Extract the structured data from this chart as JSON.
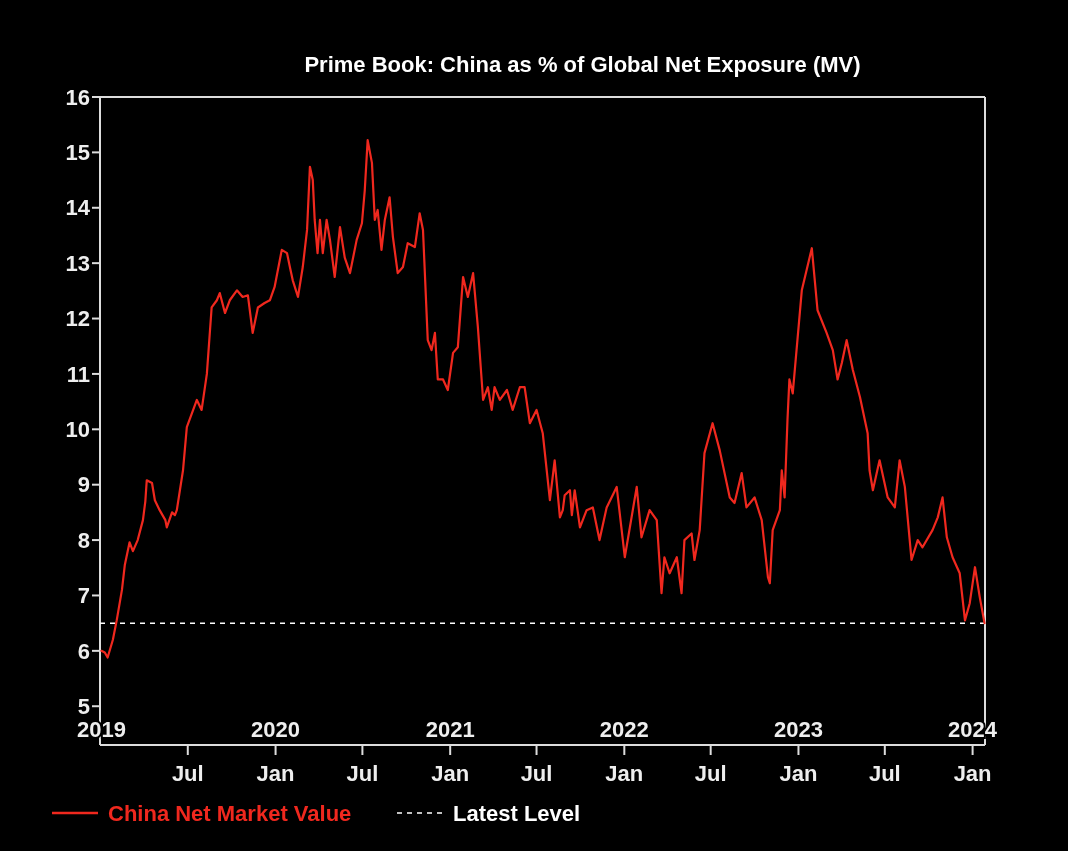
{
  "chart_data": {
    "type": "line",
    "title": "Prime Book: China as % of Global Net Exposure (MV)",
    "x": [
      "2019-01-01",
      "2019-01-08",
      "2019-01-14",
      "2019-01-25",
      "2019-02-02",
      "2019-02-13",
      "2019-02-19",
      "2019-03-01",
      "2019-03-08",
      "2019-03-18",
      "2019-03-29",
      "2019-04-03",
      "2019-04-06",
      "2019-04-17",
      "2019-04-23",
      "2019-05-03",
      "2019-05-15",
      "2019-05-18",
      "2019-05-29",
      "2019-06-04",
      "2019-06-08",
      "2019-06-21",
      "2019-06-29",
      "2019-07-20",
      "2019-07-30",
      "2019-08-10",
      "2019-08-20",
      "2019-08-31",
      "2019-09-06",
      "2019-09-17",
      "2019-09-27",
      "2019-10-12",
      "2019-10-24",
      "2019-11-04",
      "2019-11-14",
      "2019-11-25",
      "2019-12-09",
      "2019-12-20",
      "2019-12-30",
      "2020-01-14",
      "2020-01-25",
      "2020-01-31",
      "2020-02-06",
      "2020-02-17",
      "2020-02-27",
      "2020-03-07",
      "2020-03-13",
      "2020-03-19",
      "2020-03-23",
      "2020-03-29",
      "2020-04-03",
      "2020-04-09",
      "2020-04-17",
      "2020-04-24",
      "2020-05-04",
      "2020-05-15",
      "2020-05-25",
      "2020-06-05",
      "2020-06-19",
      "2020-06-30",
      "2020-07-06",
      "2020-07-12",
      "2020-07-21",
      "2020-07-27",
      "2020-08-02",
      "2020-08-10",
      "2020-08-17",
      "2020-08-27",
      "2020-09-03",
      "2020-09-13",
      "2020-09-24",
      "2020-10-04",
      "2020-10-19",
      "2020-10-29",
      "2020-11-05",
      "2020-11-15",
      "2020-11-23",
      "2020-11-30",
      "2020-12-06",
      "2020-12-17",
      "2020-12-27",
      "2021-01-07",
      "2021-01-17",
      "2021-01-28",
      "2021-02-07",
      "2021-02-18",
      "2021-02-28",
      "2021-03-11",
      "2021-03-21",
      "2021-03-29",
      "2021-04-04",
      "2021-04-15",
      "2021-04-30",
      "2021-05-12",
      "2021-05-27",
      "2021-06-06",
      "2021-06-17",
      "2021-07-01",
      "2021-07-14",
      "2021-07-29",
      "2021-08-08",
      "2021-08-19",
      "2021-08-25",
      "2021-08-29",
      "2021-09-09",
      "2021-09-13",
      "2021-09-19",
      "2021-09-30",
      "2021-10-14",
      "2021-10-27",
      "2021-11-10",
      "2021-11-25",
      "2021-12-16",
      "2022-01-02",
      "2022-01-27",
      "2022-02-06",
      "2022-02-23",
      "2022-03-10",
      "2022-03-20",
      "2022-03-26",
      "2022-04-06",
      "2022-04-21",
      "2022-05-01",
      "2022-05-07",
      "2022-05-22",
      "2022-05-28",
      "2022-06-08",
      "2022-06-18",
      "2022-07-05",
      "2022-07-20",
      "2022-08-10",
      "2022-08-20",
      "2022-09-04",
      "2022-09-14",
      "2022-10-01",
      "2022-10-16",
      "2022-10-29",
      "2022-11-02",
      "2022-11-08",
      "2022-11-23",
      "2022-11-27",
      "2022-12-03",
      "2022-12-09",
      "2022-12-13",
      "2022-12-20",
      "2023-01-08",
      "2023-01-29",
      "2023-02-10",
      "2023-03-01",
      "2023-03-14",
      "2023-03-24",
      "2023-04-02",
      "2023-04-12",
      "2023-04-25",
      "2023-05-10",
      "2023-05-26",
      "2023-05-30",
      "2023-06-06",
      "2023-06-20",
      "2023-07-07",
      "2023-07-22",
      "2023-08-01",
      "2023-08-12",
      "2023-08-26",
      "2023-09-08",
      "2023-09-18",
      "2023-10-09",
      "2023-10-20",
      "2023-10-30",
      "2023-11-08",
      "2023-11-20",
      "2023-12-05",
      "2023-12-16",
      "2023-12-26",
      "2024-01-06",
      "2024-01-16",
      "2024-01-26"
    ],
    "series": [
      {
        "name": "China Net Market Value",
        "color": "#f0281e",
        "values": [
          6.0,
          5.97,
          5.88,
          6.2,
          6.55,
          7.1,
          7.55,
          7.96,
          7.8,
          8.0,
          8.36,
          8.7,
          9.08,
          9.03,
          8.72,
          8.54,
          8.36,
          8.23,
          8.5,
          8.45,
          8.54,
          9.26,
          10.04,
          10.53,
          10.35,
          11.0,
          12.2,
          12.33,
          12.46,
          12.1,
          12.33,
          12.51,
          12.39,
          12.42,
          11.74,
          12.2,
          12.28,
          12.33,
          12.57,
          13.24,
          13.18,
          12.93,
          12.69,
          12.39,
          12.93,
          13.6,
          14.74,
          14.5,
          13.78,
          13.18,
          13.78,
          13.18,
          13.78,
          13.42,
          12.75,
          13.65,
          13.1,
          12.82,
          13.42,
          13.72,
          14.32,
          15.22,
          14.81,
          13.78,
          13.96,
          13.24,
          13.78,
          14.19,
          13.47,
          12.82,
          12.93,
          13.36,
          13.29,
          13.9,
          13.6,
          11.61,
          11.43,
          11.74,
          10.9,
          10.9,
          10.71,
          11.38,
          11.48,
          12.75,
          12.39,
          12.82,
          11.85,
          10.53,
          10.76,
          10.35,
          10.76,
          10.53,
          10.71,
          10.35,
          10.76,
          10.76,
          10.11,
          10.35,
          9.93,
          8.72,
          9.44,
          8.41,
          8.54,
          8.81,
          8.9,
          8.45,
          8.9,
          8.23,
          8.54,
          8.59,
          8.0,
          8.59,
          8.96,
          7.69,
          8.96,
          8.05,
          8.54,
          8.36,
          7.04,
          7.69,
          7.4,
          7.69,
          7.04,
          8.0,
          8.12,
          7.64,
          8.18,
          9.57,
          10.11,
          9.62,
          8.77,
          8.67,
          9.21,
          8.59,
          8.77,
          8.36,
          7.33,
          7.22,
          8.18,
          8.54,
          9.26,
          8.77,
          10.17,
          10.9,
          10.65,
          12.51,
          13.27,
          12.15,
          11.74,
          11.43,
          10.9,
          11.2,
          11.61,
          11.07,
          10.58,
          9.93,
          9.26,
          8.9,
          9.44,
          8.77,
          8.59,
          9.44,
          8.96,
          7.64,
          8.0,
          7.87,
          8.18,
          8.41,
          8.77,
          8.05,
          7.69,
          7.4,
          6.55,
          6.86,
          7.51,
          6.97,
          6.5
        ]
      }
    ],
    "xlim": [
      "2018-12-29",
      "2024-01-27"
    ],
    "xticks": [
      {
        "value": "2019-07-01",
        "label": "Jul"
      },
      {
        "value": "2020-01-01",
        "label": "Jan"
      },
      {
        "value": "2020-07-01",
        "label": "Jul"
      },
      {
        "value": "2021-01-01",
        "label": "Jan"
      },
      {
        "value": "2021-07-01",
        "label": "Jul"
      },
      {
        "value": "2022-01-01",
        "label": "Jan"
      },
      {
        "value": "2022-07-01",
        "label": "Jul"
      },
      {
        "value": "2023-01-01",
        "label": "Jan"
      },
      {
        "value": "2023-07-01",
        "label": "Jul"
      },
      {
        "value": "2024-01-01",
        "label": "Jan"
      }
    ],
    "x2lim": [
      "2018-12-29",
      "2024-01-27"
    ],
    "x2ticks": [
      {
        "value": "2019-01-01",
        "label": "2019"
      },
      {
        "value": "2020-01-01",
        "label": "2020"
      },
      {
        "value": "2021-01-01",
        "label": "2021"
      },
      {
        "value": "2022-01-01",
        "label": "2022"
      },
      {
        "value": "2023-01-01",
        "label": "2023"
      },
      {
        "value": "2024-01-01",
        "label": "2024"
      }
    ],
    "ylim": [
      4.3,
      16
    ],
    "yticks": [
      5,
      6,
      7,
      8,
      9,
      10,
      11,
      12,
      13,
      14,
      15,
      16
    ],
    "ref_lines": [
      {
        "axis": "y",
        "value": 6.5,
        "label": "Latest Level",
        "color": "#ffffff",
        "line_style": "dashed"
      }
    ],
    "grid": false,
    "legend": "bottom left"
  }
}
